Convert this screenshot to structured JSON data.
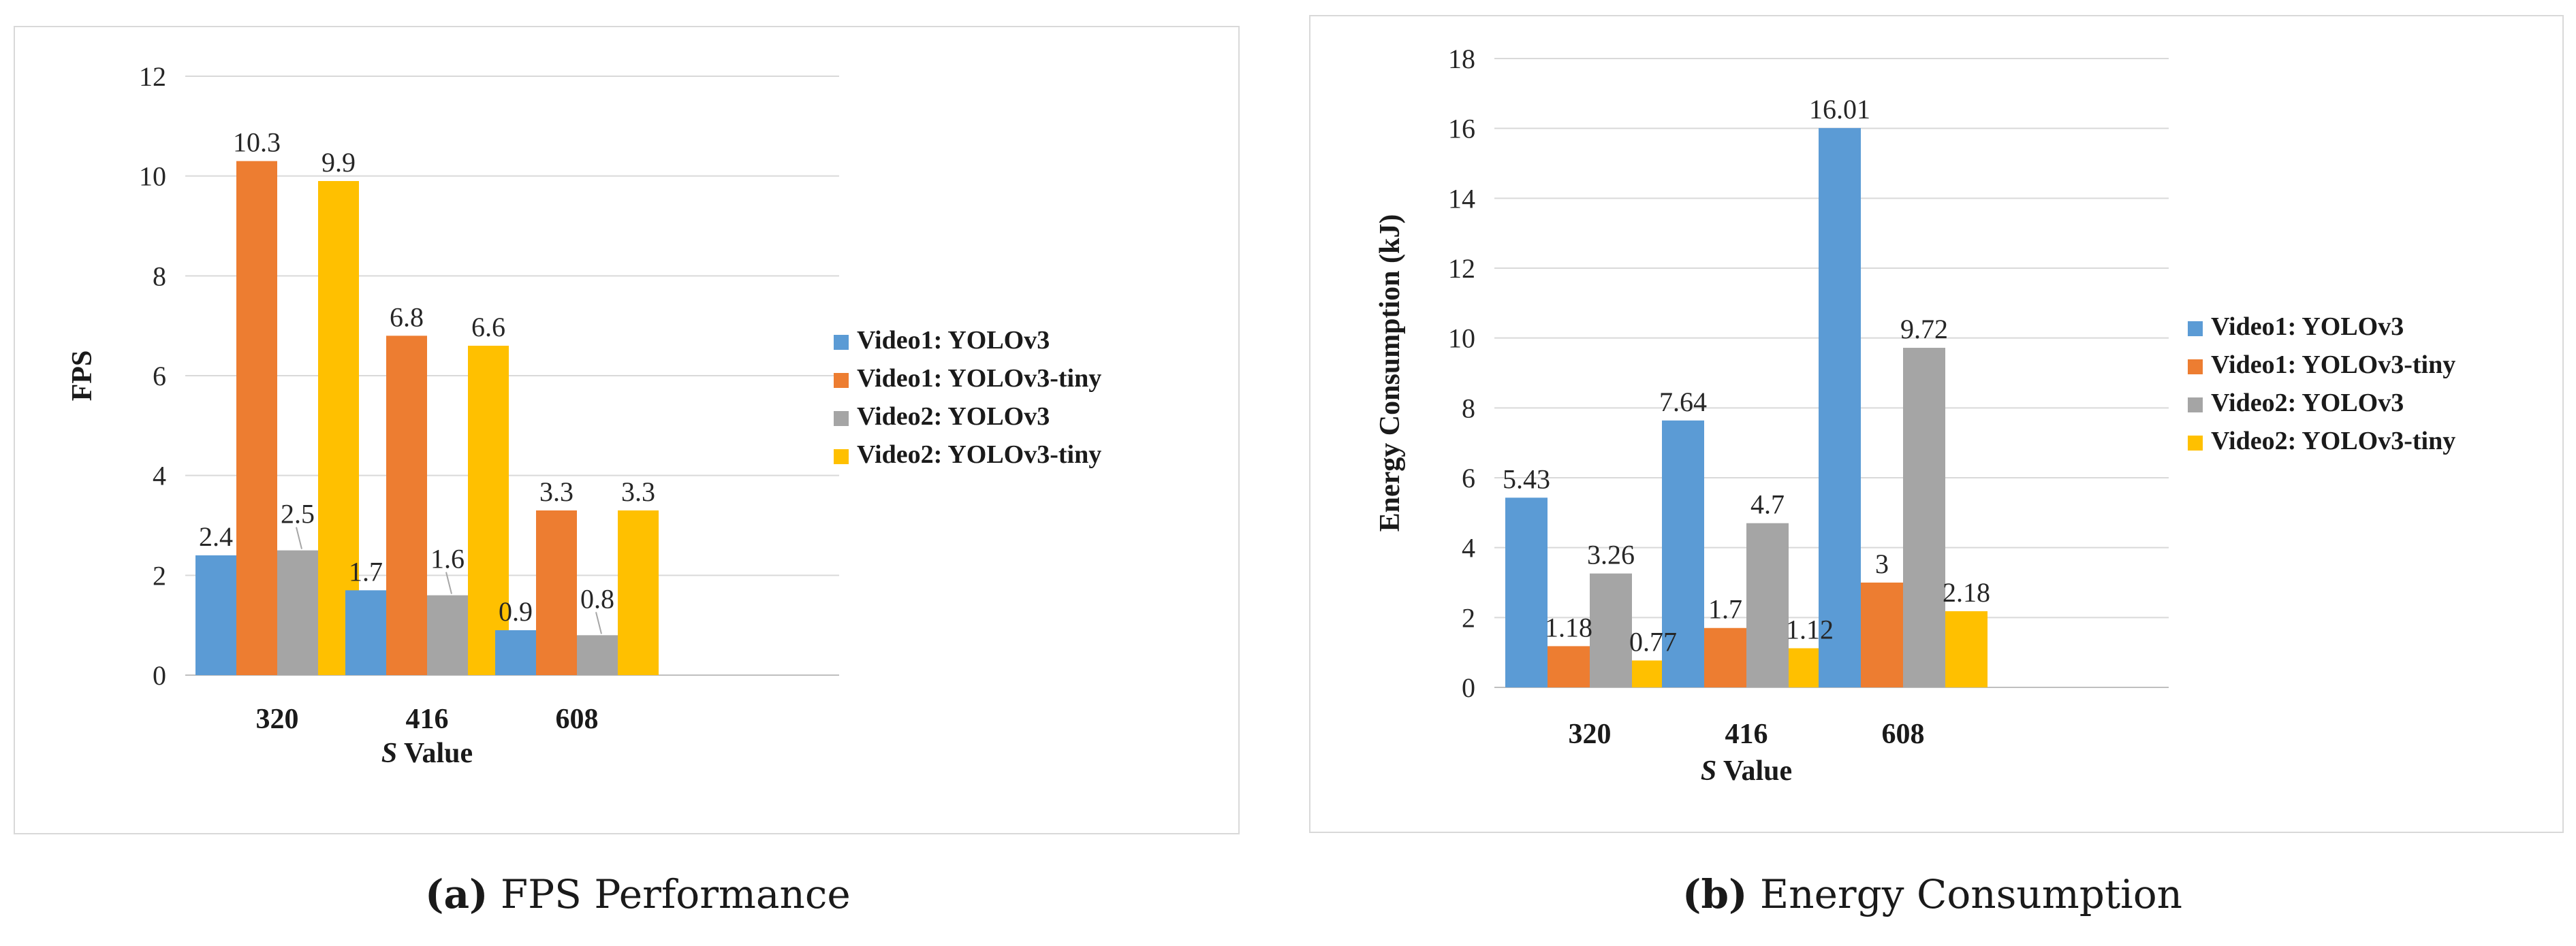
{
  "chart_data": [
    {
      "type": "bar",
      "title": "",
      "xlabel_prefix": "S",
      "xlabel_rest": " Value",
      "ylabel": "FPS",
      "ylim": [
        0,
        12
      ],
      "yticks": [
        0,
        2,
        4,
        6,
        8,
        10,
        12
      ],
      "ytick_labels": [
        "0",
        "2",
        "4",
        "6",
        "8",
        "10",
        "12"
      ],
      "grid": true,
      "legend_position": "right",
      "categories": [
        "320",
        "416",
        "608"
      ],
      "series": [
        {
          "name": "Video1: YOLOv3",
          "color": "#5b9bd5",
          "values": [
            2.4,
            1.7,
            0.9
          ],
          "labels": [
            "2.4",
            "1.7",
            "0.9"
          ]
        },
        {
          "name": "Video1: YOLOv3-tiny",
          "color": "#ed7d31",
          "values": [
            10.3,
            6.8,
            3.3
          ],
          "labels": [
            "10.3",
            "6.8",
            "3.3"
          ]
        },
        {
          "name": "Video2: YOLOv3",
          "color": "#a5a5a5",
          "values": [
            2.5,
            1.6,
            0.8
          ],
          "labels": [
            "2.5",
            "1.6",
            "0.8"
          ]
        },
        {
          "name": "Video2: YOLOv3-tiny",
          "color": "#ffc000",
          "values": [
            9.9,
            6.6,
            3.3
          ],
          "labels": [
            "9.9",
            "6.6",
            "3.3"
          ]
        }
      ]
    },
    {
      "type": "bar",
      "title": "",
      "xlabel_prefix": "S",
      "xlabel_rest": " Value",
      "ylabel": "Energy Consumption (kJ)",
      "ylim": [
        0,
        18
      ],
      "yticks": [
        0,
        2,
        4,
        6,
        8,
        10,
        12,
        14,
        16,
        18
      ],
      "ytick_labels": [
        "0",
        "2",
        "4",
        "6",
        "8",
        "10",
        "12",
        "14",
        "16",
        "18"
      ],
      "grid": true,
      "legend_position": "right",
      "categories": [
        "320",
        "416",
        "608"
      ],
      "series": [
        {
          "name": "Video1: YOLOv3",
          "color": "#5b9bd5",
          "values": [
            5.43,
            7.64,
            16.01
          ],
          "labels": [
            "5.43",
            "7.64",
            "16.01"
          ]
        },
        {
          "name": "Video1: YOLOv3-tiny",
          "color": "#ed7d31",
          "values": [
            1.18,
            1.7,
            3
          ],
          "labels": [
            "1.18",
            "1.7",
            "3"
          ]
        },
        {
          "name": "Video2: YOLOv3",
          "color": "#a5a5a5",
          "values": [
            3.26,
            4.7,
            9.72
          ],
          "labels": [
            "3.26",
            "4.7",
            "9.72"
          ]
        },
        {
          "name": "Video2: YOLOv3-tiny",
          "color": "#ffc000",
          "values": [
            0.77,
            1.12,
            2.18
          ],
          "labels": [
            "0.77",
            "1.12",
            "2.18"
          ]
        }
      ]
    }
  ],
  "captions": [
    {
      "letter": "(a)",
      "text": "FPS Performance"
    },
    {
      "letter": "(b)",
      "text": "Energy Consumption"
    }
  ]
}
